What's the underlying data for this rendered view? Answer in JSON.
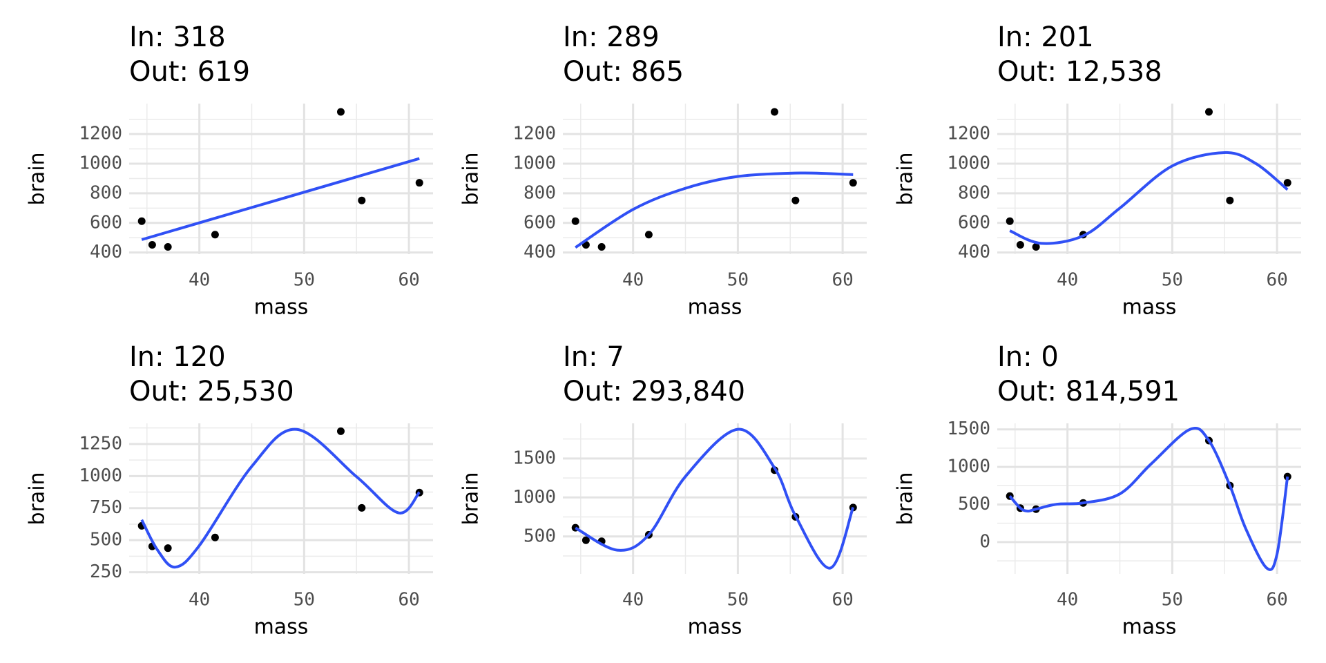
{
  "chart_data": [
    {
      "type": "scatter",
      "title": "In: 318",
      "subtitle": "Out: 619",
      "x_label": "mass",
      "y_label": "brain",
      "xlim": [
        33.3,
        62.3
      ],
      "ylim": [
        389,
        1406
      ],
      "xticks": [
        40,
        50,
        60
      ],
      "xminor": [
        35,
        45,
        55
      ],
      "yticks": [
        400,
        600,
        800,
        1000,
        1200
      ],
      "yminor": [
        500,
        700,
        900,
        1100,
        1300
      ],
      "grid": true,
      "series": [
        {
          "mode": "markers",
          "color": "#000000",
          "x": [
            37.0,
            35.5,
            34.5,
            41.5,
            55.5,
            61.0,
            53.5
          ],
          "values": [
            438,
            452,
            612,
            521,
            752,
            871,
            1350
          ]
        },
        {
          "mode": "lines",
          "color": "#3050f5",
          "x": [
            34.5,
            61
          ],
          "values": [
            487,
            1035
          ]
        }
      ]
    },
    {
      "type": "scatter",
      "title": "In: 289",
      "subtitle": "Out: 865",
      "x_label": "mass",
      "y_label": "brain",
      "xlim": [
        33.3,
        62.3
      ],
      "ylim": [
        389,
        1406
      ],
      "xticks": [
        40,
        50,
        60
      ],
      "xminor": [
        35,
        45,
        55
      ],
      "yticks": [
        400,
        600,
        800,
        1000,
        1200
      ],
      "yminor": [
        500,
        700,
        900,
        1100,
        1300
      ],
      "grid": true,
      "series": [
        {
          "mode": "markers",
          "color": "#000000",
          "x": [
            37.0,
            35.5,
            34.5,
            41.5,
            55.5,
            61.0,
            53.5
          ],
          "values": [
            438,
            452,
            612,
            521,
            752,
            871,
            1350
          ]
        },
        {
          "mode": "lines",
          "color": "#3050f5",
          "x": [
            34.5,
            40,
            45,
            50,
            56,
            61
          ],
          "values": [
            434,
            691,
            834,
            914,
            937,
            926
          ]
        }
      ]
    },
    {
      "type": "scatter",
      "title": "In: 201",
      "subtitle": "Out: 12,538",
      "x_label": "mass",
      "y_label": "brain",
      "xlim": [
        33.3,
        62.3
      ],
      "ylim": [
        389,
        1406
      ],
      "xticks": [
        40,
        50,
        60
      ],
      "xminor": [
        35,
        45,
        55
      ],
      "yticks": [
        400,
        600,
        800,
        1000,
        1200
      ],
      "yminor": [
        500,
        700,
        900,
        1100,
        1300
      ],
      "grid": true,
      "series": [
        {
          "mode": "markers",
          "color": "#000000",
          "x": [
            37.0,
            35.5,
            34.5,
            41.5,
            55.5,
            61.0,
            53.5
          ],
          "values": [
            438,
            452,
            612,
            521,
            752,
            871,
            1350
          ]
        },
        {
          "mode": "lines",
          "color": "#3050f5",
          "x": [
            34.5,
            37.5,
            41.5,
            45,
            50,
            55,
            58,
            61
          ],
          "values": [
            547,
            462,
            513,
            700,
            985,
            1075,
            1000,
            825
          ]
        }
      ]
    },
    {
      "type": "scatter",
      "title": "In: 120",
      "subtitle": "Out: 25,530",
      "x_label": "mass",
      "y_label": "brain",
      "xlim": [
        33.3,
        62.3
      ],
      "ylim": [
        237,
        1411
      ],
      "xticks": [
        40,
        50,
        60
      ],
      "xminor": [
        35,
        45,
        55
      ],
      "yticks": [
        250,
        500,
        750,
        1000,
        1250
      ],
      "yminor": [
        375,
        625,
        875,
        1125,
        1375
      ],
      "grid": true,
      "series": [
        {
          "mode": "markers",
          "color": "#000000",
          "x": [
            37.0,
            35.5,
            34.5,
            41.5,
            55.5,
            61.0,
            53.5
          ],
          "values": [
            438,
            452,
            612,
            521,
            752,
            871,
            1350
          ]
        },
        {
          "mode": "lines",
          "color": "#3050f5",
          "x": [
            34.5,
            36,
            37.7,
            40,
            45,
            49.3,
            55,
            59,
            61
          ],
          "values": [
            659,
            424,
            290,
            458,
            1075,
            1364,
            995,
            713,
            874
          ]
        }
      ]
    },
    {
      "type": "scatter",
      "title": "In: 7",
      "subtitle": "Out: 293,840",
      "x_label": "mass",
      "y_label": "brain",
      "xlim": [
        33.3,
        62.3
      ],
      "ylim": [
        20,
        1950
      ],
      "xticks": [
        40,
        50,
        60
      ],
      "xminor": [
        35,
        45,
        55
      ],
      "yticks": [
        500,
        1000,
        1500
      ],
      "yminor": [
        250,
        750,
        1250,
        1750
      ],
      "grid": true,
      "series": [
        {
          "mode": "markers",
          "color": "#000000",
          "x": [
            37.0,
            35.5,
            34.5,
            41.5,
            55.5,
            61.0,
            53.5
          ],
          "values": [
            438,
            452,
            612,
            521,
            752,
            871,
            1350
          ]
        },
        {
          "mode": "lines",
          "color": "#3050f5",
          "x": [
            34.5,
            38.5,
            41.5,
            45,
            50,
            53.5,
            55.5,
            58.8,
            61
          ],
          "values": [
            610,
            324,
            522,
            1269,
            1874,
            1379,
            764,
            94,
            874
          ]
        }
      ]
    },
    {
      "type": "scatter",
      "title": "In: 0",
      "subtitle": "Out: 814,591",
      "x_label": "mass",
      "y_label": "brain",
      "xlim": [
        33.3,
        62.3
      ],
      "ylim": [
        -424,
        1580
      ],
      "xticks": [
        40,
        50,
        60
      ],
      "xminor": [
        35,
        45,
        55
      ],
      "yticks": [
        0,
        500,
        1000,
        1500
      ],
      "yminor": [
        -250,
        250,
        750,
        1250
      ],
      "grid": true,
      "series": [
        {
          "mode": "markers",
          "color": "#000000",
          "x": [
            37.0,
            35.5,
            34.5,
            41.5,
            55.5,
            61.0,
            53.5
          ],
          "values": [
            438,
            452,
            612,
            521,
            752,
            871,
            1350
          ]
        },
        {
          "mode": "lines",
          "color": "#3050f5",
          "x": [
            34.5,
            35.5,
            36.2,
            37,
            39,
            41.5,
            45,
            48,
            51.7,
            53.5,
            55.5,
            57,
            59,
            60,
            61
          ],
          "values": [
            612,
            452,
            412,
            438,
            504,
            521,
            641,
            1042,
            1500,
            1350,
            752,
            183,
            -344,
            -160,
            871
          ]
        }
      ]
    }
  ]
}
